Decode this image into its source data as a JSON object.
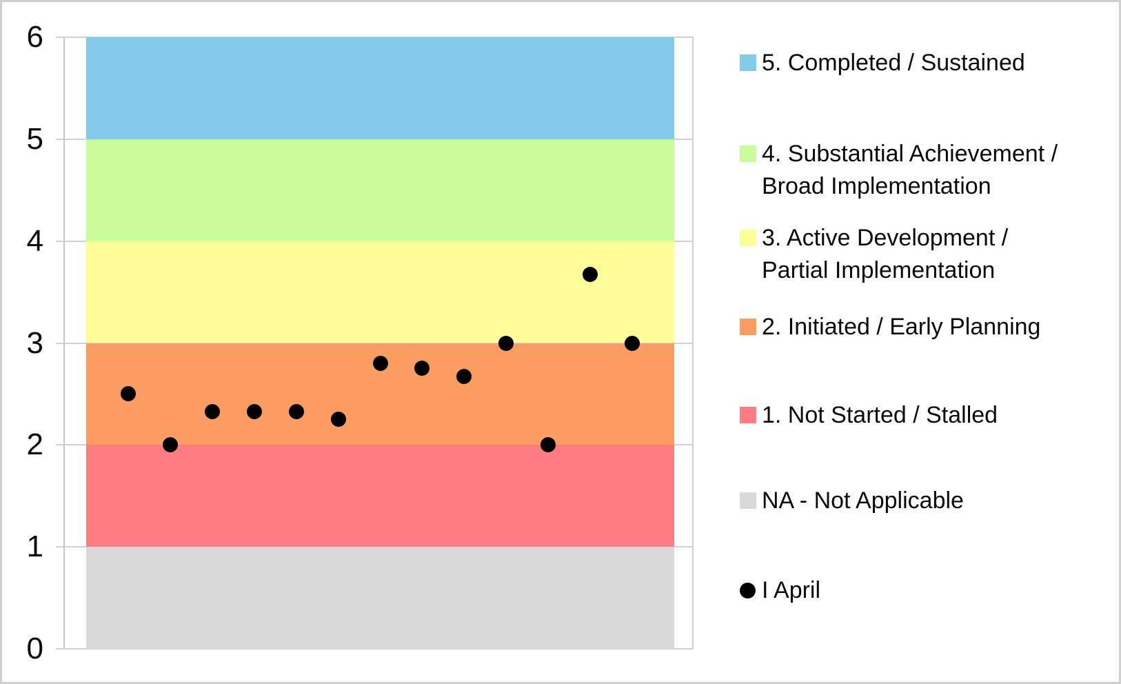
{
  "chart_data": {
    "type": "scatter",
    "title": "",
    "grid": true,
    "y_axis": {
      "min": 0,
      "max": 6,
      "tick_interval": 1,
      "tick_labels": [
        "0",
        "1",
        "2",
        "3",
        "4",
        "5",
        "6"
      ]
    },
    "x_axis": {
      "labels_visible": false,
      "slots": 14
    },
    "bands": [
      {
        "label": "5. Completed / Sustained",
        "from": 5,
        "to": 6,
        "color": "#82cbeb"
      },
      {
        "label": "4. Substantial Achievement / Broad Implementation",
        "from": 4,
        "to": 5,
        "color": "#c9fd9b"
      },
      {
        "label": "3. Active Development / Partial Implementation",
        "from": 3,
        "to": 4,
        "color": "#fefe98"
      },
      {
        "label": "2. Initiated / Early Planning",
        "from": 2,
        "to": 3,
        "color": "#fb9d63"
      },
      {
        "label": "1. Not Started / Stalled",
        "from": 1,
        "to": 2,
        "color": "#fd7c81"
      },
      {
        "label": "NA - Not Applicable",
        "from": 0,
        "to": 1,
        "color": "#d9d9d9"
      }
    ],
    "series": [
      {
        "name": "I April",
        "marker": "circle",
        "color": "#000000",
        "x": [
          1,
          2,
          3,
          4,
          5,
          6,
          7,
          8,
          9,
          10,
          11,
          12,
          13
        ],
        "values": [
          2.5,
          2.0,
          2.33,
          2.33,
          2.33,
          2.25,
          2.8,
          2.75,
          2.67,
          3.0,
          2.0,
          3.67,
          3.0
        ]
      }
    ],
    "legend": {
      "position": "right",
      "items": [
        {
          "lines": [
            "5. Completed / Sustained"
          ],
          "marker": "square",
          "color": "#82cbeb"
        },
        {
          "lines": [
            "4. Substantial Achievement /",
            "Broad Implementation"
          ],
          "marker": "square",
          "color": "#c9fd9b"
        },
        {
          "lines": [
            "3. Active Development /",
            "Partial Implementation"
          ],
          "marker": "square",
          "color": "#fefe98"
        },
        {
          "lines": [
            "2. Initiated / Early Planning"
          ],
          "marker": "square",
          "color": "#fb9d63"
        },
        {
          "lines": [
            "1. Not Started / Stalled"
          ],
          "marker": "square",
          "color": "#fd7c81"
        },
        {
          "lines": [
            "NA - Not Applicable"
          ],
          "marker": "square",
          "color": "#d9d9d9"
        },
        {
          "lines": [
            "I April"
          ],
          "marker": "circle",
          "color": "#000000"
        }
      ]
    }
  }
}
